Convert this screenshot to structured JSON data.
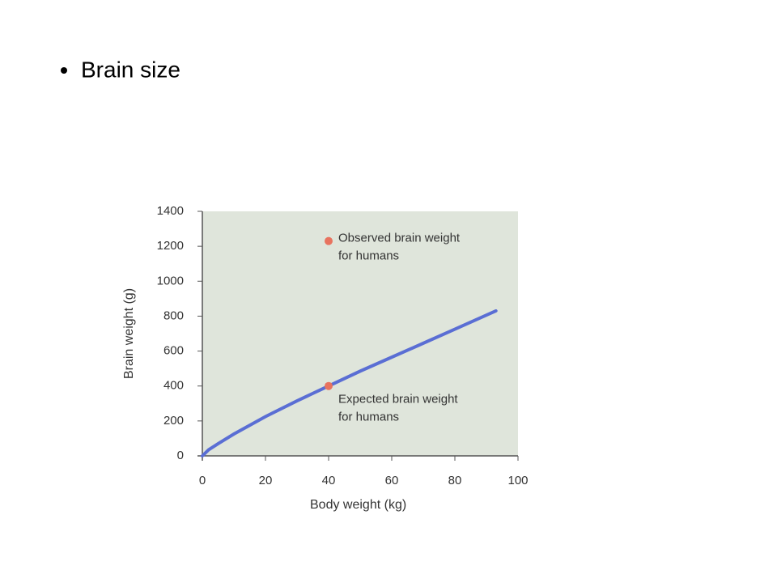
{
  "bullet": "Brain size",
  "chart_data": {
    "type": "line",
    "xlabel": "Body weight (kg)",
    "ylabel": "Brain weight (g)",
    "x": [
      0,
      2,
      5,
      10,
      20,
      30,
      40,
      50,
      60,
      70,
      80,
      93
    ],
    "values": [
      0,
      35,
      70,
      125,
      225,
      315,
      400,
      485,
      565,
      645,
      725,
      830
    ],
    "color": "#5a6ed4",
    "xlim": [
      0,
      100
    ],
    "ylim": [
      0,
      1400
    ],
    "xticks": [
      0,
      20,
      40,
      60,
      80,
      100
    ],
    "yticks": [
      0,
      200,
      400,
      600,
      800,
      1000,
      1200,
      1400
    ],
    "points": [
      {
        "x": 40,
        "y": 1230,
        "color": "#e8735f",
        "label": [
          "Observed brain weight",
          "for humans"
        ]
      },
      {
        "x": 40,
        "y": 400,
        "color": "#e8735f",
        "label": [
          "Expected brain weight",
          "for humans"
        ]
      }
    ]
  }
}
